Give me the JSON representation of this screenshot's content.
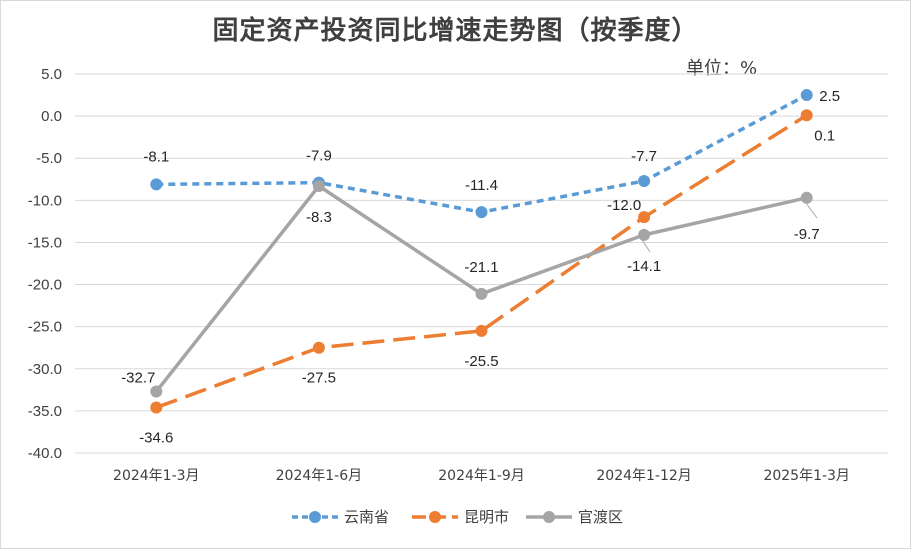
{
  "chart_data": {
    "type": "line",
    "title": "固定资产投资同比增速走势图（按季度）",
    "unit_label": "单位：%",
    "categories": [
      "2024年1-3月",
      "2024年1-6月",
      "2024年1-9月",
      "2024年1-12月",
      "2025年1-3月"
    ],
    "ylim": [
      -40,
      5
    ],
    "yticks": [
      "5.0",
      "0.0",
      "-5.0",
      "-10.0",
      "-15.0",
      "-20.0",
      "-25.0",
      "-30.0",
      "-35.0",
      "-40.0"
    ],
    "grid": true,
    "legend_position": "bottom",
    "series": [
      {
        "name": "云南省",
        "color": "#5b9bd5",
        "dash": "short-dash",
        "values": [
          -8.1,
          -7.9,
          -11.4,
          -7.7,
          2.5
        ],
        "labels": [
          "-8.1",
          "-7.9",
          "-11.4",
          "-7.7",
          "2.5"
        ]
      },
      {
        "name": "昆明市",
        "color": "#ed7d31",
        "dash": "long-dash",
        "values": [
          -34.6,
          -27.5,
          -25.5,
          -12.0,
          0.1
        ],
        "labels": [
          "-34.6",
          "-27.5",
          "-25.5",
          "-12.0",
          "0.1"
        ]
      },
      {
        "name": "官渡区",
        "color": "#a5a5a5",
        "dash": "solid",
        "values": [
          -32.7,
          -8.3,
          -21.1,
          -14.1,
          -9.7
        ],
        "labels": [
          "-32.7",
          "-8.3",
          "-21.1",
          "-14.1",
          "-9.7"
        ]
      }
    ]
  }
}
